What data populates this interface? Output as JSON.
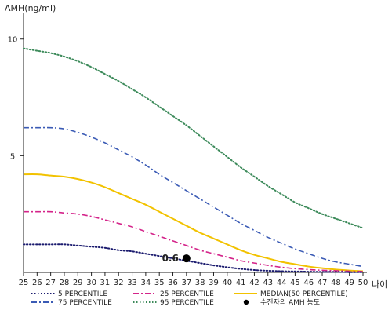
{
  "chart_data": {
    "type": "line",
    "ylabel": "AMH(ng/ml)",
    "xlabel": "나이",
    "xlim": [
      25,
      50
    ],
    "ylim": [
      0,
      11
    ],
    "x_ticks": [
      25,
      26,
      27,
      28,
      29,
      30,
      31,
      32,
      33,
      34,
      35,
      36,
      37,
      38,
      39,
      40,
      41,
      42,
      43,
      44,
      45,
      46,
      47,
      48,
      49,
      50
    ],
    "y_ticks": [
      5,
      10
    ],
    "grid": false,
    "legend_position": "bottom",
    "series": [
      {
        "name": "95 PERCENTILE",
        "color": "#3c8a5a",
        "dash": "dotted",
        "x": [
          25,
          26,
          27,
          28,
          29,
          30,
          31,
          32,
          33,
          34,
          35,
          36,
          37,
          38,
          39,
          40,
          41,
          42,
          43,
          44,
          45,
          46,
          47,
          48,
          49,
          50
        ],
        "y": [
          9.6,
          9.5,
          9.4,
          9.25,
          9.05,
          8.8,
          8.5,
          8.2,
          7.85,
          7.5,
          7.1,
          6.7,
          6.3,
          5.85,
          5.4,
          4.95,
          4.5,
          4.1,
          3.7,
          3.35,
          3.0,
          2.75,
          2.5,
          2.3,
          2.1,
          1.9
        ]
      },
      {
        "name": "75 PERCENTILE",
        "color": "#3b5bb5",
        "dash": "dashdot",
        "x": [
          25,
          26,
          27,
          28,
          29,
          30,
          31,
          32,
          33,
          34,
          35,
          36,
          37,
          38,
          39,
          40,
          41,
          42,
          43,
          44,
          45,
          46,
          47,
          48,
          49,
          50
        ],
        "y": [
          6.2,
          6.2,
          6.2,
          6.15,
          6.0,
          5.8,
          5.55,
          5.25,
          4.95,
          4.6,
          4.2,
          3.85,
          3.5,
          3.15,
          2.8,
          2.45,
          2.1,
          1.8,
          1.5,
          1.25,
          1.0,
          0.8,
          0.6,
          0.45,
          0.35,
          0.25
        ]
      },
      {
        "name": "MEDIAN(50 PERCENTILE)",
        "color": "#f2c200",
        "dash": "solid",
        "x": [
          25,
          26,
          27,
          28,
          29,
          30,
          31,
          32,
          33,
          34,
          35,
          36,
          37,
          38,
          39,
          40,
          41,
          42,
          43,
          44,
          45,
          46,
          47,
          48,
          49,
          50
        ],
        "y": [
          4.2,
          4.2,
          4.15,
          4.1,
          4.0,
          3.85,
          3.65,
          3.4,
          3.15,
          2.9,
          2.6,
          2.3,
          2.0,
          1.7,
          1.45,
          1.2,
          0.95,
          0.75,
          0.6,
          0.45,
          0.35,
          0.25,
          0.18,
          0.12,
          0.08,
          0.05
        ]
      },
      {
        "name": "25 PERCENTILE",
        "color": "#d4248a",
        "dash": "dashdot",
        "x": [
          25,
          26,
          27,
          28,
          29,
          30,
          31,
          32,
          33,
          34,
          35,
          36,
          37,
          38,
          39,
          40,
          41,
          42,
          43,
          44,
          45,
          46,
          47,
          48,
          49,
          50
        ],
        "y": [
          2.6,
          2.6,
          2.6,
          2.55,
          2.5,
          2.4,
          2.25,
          2.1,
          1.95,
          1.75,
          1.55,
          1.35,
          1.15,
          0.95,
          0.8,
          0.65,
          0.5,
          0.4,
          0.3,
          0.22,
          0.16,
          0.12,
          0.09,
          0.07,
          0.05,
          0.04
        ]
      },
      {
        "name": "5 PERCENTILE",
        "color": "#1a1a6e",
        "dash": "dotted",
        "x": [
          25,
          26,
          27,
          28,
          29,
          30,
          31,
          32,
          33,
          34,
          35,
          36,
          37,
          38,
          39,
          40,
          41,
          42,
          43,
          44,
          45,
          46,
          47,
          48,
          49,
          50
        ],
        "y": [
          1.2,
          1.2,
          1.2,
          1.2,
          1.15,
          1.1,
          1.05,
          0.95,
          0.9,
          0.8,
          0.7,
          0.6,
          0.5,
          0.4,
          0.3,
          0.22,
          0.15,
          0.1,
          0.07,
          0.05,
          0.04,
          0.03,
          0.02,
          0.02,
          0.01,
          0.01
        ]
      }
    ],
    "point": {
      "name": "수진자의 AMH 농도",
      "x": 37,
      "y": 0.6,
      "label": "0.6",
      "color": "#000000"
    },
    "legend": [
      {
        "label": "5 PERCENTILE",
        "color": "#1a1a6e",
        "dash": "dotted"
      },
      {
        "label": "25 PERCENTILE",
        "color": "#d4248a",
        "dash": "dashdot"
      },
      {
        "label": "MEDIAN(50 PERCENTILE)",
        "color": "#f2c200",
        "dash": "solid"
      },
      {
        "label": "75 PERCENTILE",
        "color": "#3b5bb5",
        "dash": "dashdot"
      },
      {
        "label": "95 PERCENTILE",
        "color": "#3c8a5a",
        "dash": "dotted"
      },
      {
        "label": "수진자의 AMH 농도",
        "color": "#000000",
        "dash": "marker"
      }
    ]
  }
}
